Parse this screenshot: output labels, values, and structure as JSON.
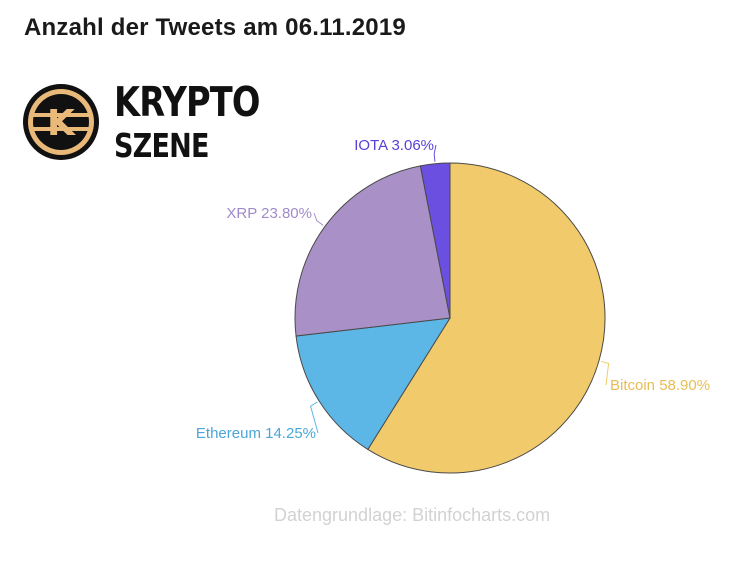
{
  "header": {
    "title": "Anzahl der Tweets am 06.11.2019"
  },
  "logo": {
    "line1": "KRYPTO",
    "line2": "SZENE",
    "mark": "K"
  },
  "footer": {
    "source": "Datengrundlage: Bitinfocharts.com"
  },
  "chart_data": {
    "type": "pie",
    "title": "Anzahl der Tweets am 06.11.2019",
    "slices": [
      {
        "name": "Bitcoin",
        "value": 58.9,
        "label": "Bitcoin 58.90%",
        "color": "#f0ca6b",
        "label_color": "#e8bd55"
      },
      {
        "name": "Ethereum",
        "value": 14.25,
        "label": "Ethereum 14.25%",
        "color": "#5db7e6",
        "label_color": "#4aa6d8"
      },
      {
        "name": "XRP",
        "value": 23.8,
        "label": "XRP 23.80%",
        "color": "#a991c8",
        "label_color": "#a08bc8"
      },
      {
        "name": "IOTA",
        "value": 3.06,
        "label": "IOTA 3.06%",
        "color": "#6a4fe0",
        "label_color": "#5a3fd6"
      }
    ]
  }
}
